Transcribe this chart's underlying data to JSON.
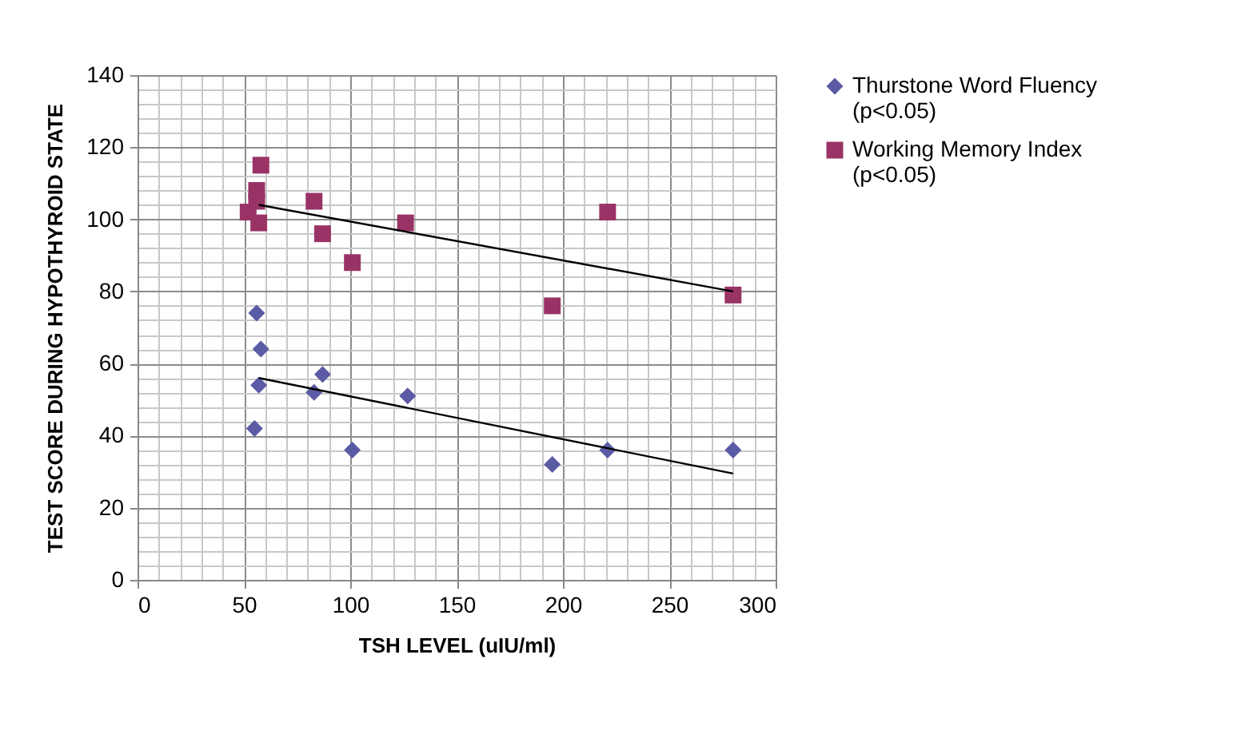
{
  "chart_data": {
    "type": "scatter",
    "xlabel": "TSH LEVEL (uIU/ml)",
    "ylabel": "TEST SCORE DURING HYPOTHYROID STATE",
    "xlim": [
      0,
      300
    ],
    "ylim": [
      0,
      140
    ],
    "xticks": [
      0,
      {
        "value": 10,
        "label": null
      },
      {
        "value": 20,
        "label": null
      },
      {
        "value": 30,
        "label": null
      },
      {
        "value": 40,
        "label": null
      },
      50,
      {
        "value": 60,
        "label": null
      },
      {
        "value": 70,
        "label": null
      },
      {
        "value": 80,
        "label": null
      },
      {
        "value": 90,
        "label": null
      },
      100,
      {
        "value": 110,
        "label": null
      },
      {
        "value": 120,
        "label": null
      },
      {
        "value": 130,
        "label": null
      },
      {
        "value": 140,
        "label": null
      },
      150,
      {
        "value": 160,
        "label": null
      },
      {
        "value": 170,
        "label": null
      },
      {
        "value": 180,
        "label": null
      },
      {
        "value": 190,
        "label": null
      },
      200,
      {
        "value": 210,
        "label": null
      },
      {
        "value": 220,
        "label": null
      },
      {
        "value": 230,
        "label": null
      },
      {
        "value": 240,
        "label": null
      },
      250,
      {
        "value": 260,
        "label": null
      },
      {
        "value": 270,
        "label": null
      },
      {
        "value": 280,
        "label": null
      },
      {
        "value": 290,
        "label": null
      },
      300
    ],
    "yticks": [
      0,
      {
        "value": 4,
        "label": null
      },
      {
        "value": 8,
        "label": null
      },
      {
        "value": 12,
        "label": null
      },
      {
        "value": 16,
        "label": null
      },
      20,
      {
        "value": 24,
        "label": null
      },
      {
        "value": 28,
        "label": null
      },
      {
        "value": 32,
        "label": null
      },
      {
        "value": 36,
        "label": null
      },
      40,
      {
        "value": 44,
        "label": null
      },
      {
        "value": 48,
        "label": null
      },
      {
        "value": 52,
        "label": null
      },
      {
        "value": 56,
        "label": null
      },
      60,
      {
        "value": 64,
        "label": null
      },
      {
        "value": 68,
        "label": null
      },
      {
        "value": 72,
        "label": null
      },
      {
        "value": 76,
        "label": null
      },
      80,
      {
        "value": 84,
        "label": null
      },
      {
        "value": 88,
        "label": null
      },
      {
        "value": 92,
        "label": null
      },
      {
        "value": 96,
        "label": null
      },
      100,
      {
        "value": 104,
        "label": null
      },
      {
        "value": 108,
        "label": null
      },
      {
        "value": 112,
        "label": null
      },
      {
        "value": 116,
        "label": null
      },
      120,
      {
        "value": 124,
        "label": null
      },
      {
        "value": 128,
        "label": null
      },
      {
        "value": 132,
        "label": null
      },
      {
        "value": 136,
        "label": null
      },
      140
    ],
    "grid": true,
    "legend": "right",
    "series": [
      {
        "name": "Thurstone Word Fluency (p<0.05)",
        "color": "#5a5aa5",
        "marker": "diamond",
        "x": [
          55,
          56,
          57,
          58,
          83,
          87,
          101,
          127,
          195,
          221,
          280
        ],
        "values": [
          42,
          74,
          54,
          64,
          52,
          57,
          36,
          51,
          32,
          36,
          36
        ]
      },
      {
        "name": "Working Memory Index (p<0.05)",
        "color": "#993366",
        "marker": "square",
        "x": [
          52,
          56,
          56,
          57,
          58,
          83,
          87,
          101,
          126,
          195,
          221,
          280
        ],
        "values": [
          102,
          108,
          105,
          99,
          115,
          105,
          96,
          88,
          99,
          76,
          102,
          79
        ]
      },
      {
        "type": "line",
        "color": "#000000",
        "x": [
          57,
          280
        ],
        "values": [
          56,
          29.5
        ]
      },
      {
        "type": "line",
        "color": "#000000",
        "x": [
          57,
          280
        ],
        "values": [
          104,
          80
        ]
      }
    ]
  }
}
